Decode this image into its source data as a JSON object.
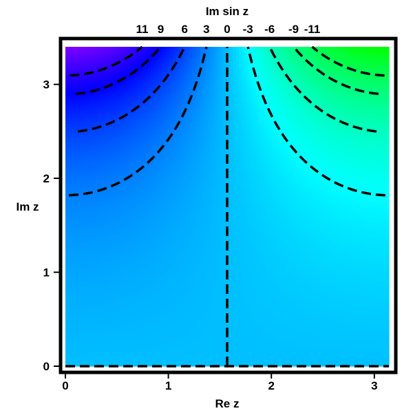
{
  "chart_data": {
    "type": "contour",
    "function": "Im sin z",
    "top_title": "Im sin z",
    "xlabel": "Re z",
    "ylabel": "Im z",
    "xlim": [
      0,
      3.14159
    ],
    "ylim": [
      0,
      3.4
    ],
    "x_ticks": [
      {
        "value": 0,
        "label": "0"
      },
      {
        "value": 1,
        "label": "1"
      },
      {
        "value": 2,
        "label": "2"
      },
      {
        "value": 3,
        "label": "3"
      }
    ],
    "y_ticks": [
      {
        "value": 0,
        "label": "0"
      },
      {
        "value": 1,
        "label": "1"
      },
      {
        "value": 2,
        "label": "2"
      },
      {
        "value": 3,
        "label": "3"
      }
    ],
    "contour_levels": [
      11,
      9,
      6,
      3,
      0,
      -3,
      -6,
      -9,
      -11
    ],
    "contour_labels": [
      {
        "level": 11,
        "label": "11"
      },
      {
        "level": 9,
        "label": "9"
      },
      {
        "level": 6,
        "label": "6"
      },
      {
        "level": 3,
        "label": "3"
      },
      {
        "level": 0,
        "label": "0"
      },
      {
        "level": -3,
        "label": "-3"
      },
      {
        "level": -6,
        "label": "-6"
      },
      {
        "level": -9,
        "label": "-9"
      },
      {
        "level": -11,
        "label": "-11"
      }
    ],
    "fill_value_range": [
      -15,
      15
    ],
    "fill_hue_range": [
      120,
      270
    ],
    "contour_style": "dashed black"
  }
}
